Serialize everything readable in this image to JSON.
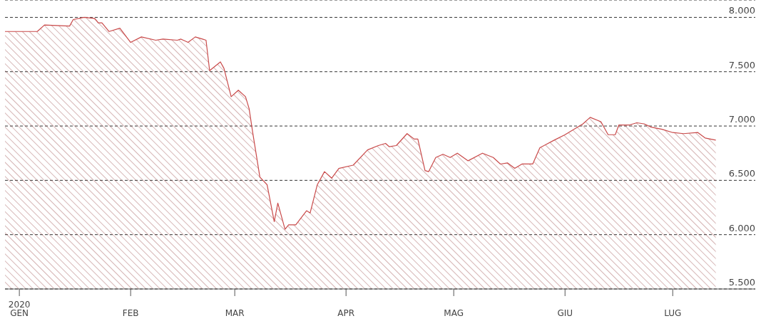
{
  "chart_data": {
    "type": "area",
    "color": "#c94a4a",
    "x": [
      "2019-12-28",
      "2020-01-06",
      "2020-01-08",
      "2020-01-15",
      "2020-01-16",
      "2020-01-19",
      "2020-01-22",
      "2020-01-23",
      "2020-01-24",
      "2020-01-26",
      "2020-01-29",
      "2020-02-01",
      "2020-02-04",
      "2020-02-08",
      "2020-02-10",
      "2020-02-14",
      "2020-02-15",
      "2020-02-17",
      "2020-02-19",
      "2020-02-21",
      "2020-02-22",
      "2020-02-23",
      "2020-02-26",
      "2020-02-27",
      "2020-02-29",
      "2020-03-02",
      "2020-03-04",
      "2020-03-05",
      "2020-03-06",
      "2020-03-08",
      "2020-03-10",
      "2020-03-12",
      "2020-03-13",
      "2020-03-15",
      "2020-03-16",
      "2020-03-18",
      "2020-03-21",
      "2020-03-22",
      "2020-03-24",
      "2020-03-26",
      "2020-03-28",
      "2020-03-30",
      "2020-04-03",
      "2020-04-07",
      "2020-04-10",
      "2020-04-12",
      "2020-04-13",
      "2020-04-15",
      "2020-04-18",
      "2020-04-20",
      "2020-04-21",
      "2020-04-23",
      "2020-04-24",
      "2020-04-26",
      "2020-04-28",
      "2020-04-30",
      "2020-05-02",
      "2020-05-05",
      "2020-05-09",
      "2020-05-12",
      "2020-05-14",
      "2020-05-16",
      "2020-05-18",
      "2020-05-20",
      "2020-05-23",
      "2020-05-25",
      "2020-05-29",
      "2020-06-01",
      "2020-06-06",
      "2020-06-08",
      "2020-06-11",
      "2020-06-13",
      "2020-06-15",
      "2020-06-16",
      "2020-06-19",
      "2020-06-21",
      "2020-06-23",
      "2020-06-25",
      "2020-06-28",
      "2020-07-01",
      "2020-07-04",
      "2020-07-08",
      "2020-07-10",
      "2020-07-13"
    ],
    "values": [
      7870,
      7870,
      7930,
      7920,
      7980,
      8000,
      7990,
      7950,
      7950,
      7870,
      7900,
      7770,
      7820,
      7790,
      7800,
      7790,
      7800,
      7770,
      7820,
      7800,
      7790,
      7510,
      7590,
      7530,
      7270,
      7330,
      7270,
      7160,
      6940,
      6530,
      6460,
      6120,
      6290,
      6050,
      6090,
      6090,
      6220,
      6200,
      6460,
      6580,
      6520,
      6610,
      6640,
      6780,
      6820,
      6840,
      6810,
      6820,
      6930,
      6880,
      6880,
      6590,
      6580,
      6710,
      6740,
      6710,
      6750,
      6680,
      6750,
      6710,
      6650,
      6660,
      6610,
      6650,
      6650,
      6800,
      6870,
      6920,
      7020,
      7080,
      7040,
      6920,
      6920,
      7010,
      7010,
      7030,
      7020,
      6990,
      6970,
      6940,
      6930,
      6940,
      6890,
      6870
    ],
    "xlim": [
      "2019-12-28",
      "2020-07-24"
    ],
    "xticks": [
      {
        "value": "2020-01-01",
        "label": "2020\nGEN"
      },
      {
        "value": "2020-02-01",
        "label": "FEB"
      },
      {
        "value": "2020-03-01",
        "label": "MAR"
      },
      {
        "value": "2020-04-01",
        "label": "APR"
      },
      {
        "value": "2020-05-01",
        "label": "MAG"
      },
      {
        "value": "2020-06-01",
        "label": "GIU"
      },
      {
        "value": "2020-07-01",
        "label": "LUG"
      }
    ],
    "ylim": [
      5500,
      8160
    ],
    "yticks": [
      {
        "value": 5500,
        "label": "5.500"
      },
      {
        "value": 6000,
        "label": "6.000"
      },
      {
        "value": 6500,
        "label": "6.500"
      },
      {
        "value": 7000,
        "label": "7.000"
      },
      {
        "value": 7500,
        "label": "7.500"
      },
      {
        "value": 8000,
        "label": "8.000"
      }
    ],
    "grid": "y",
    "line_style": "solid"
  }
}
